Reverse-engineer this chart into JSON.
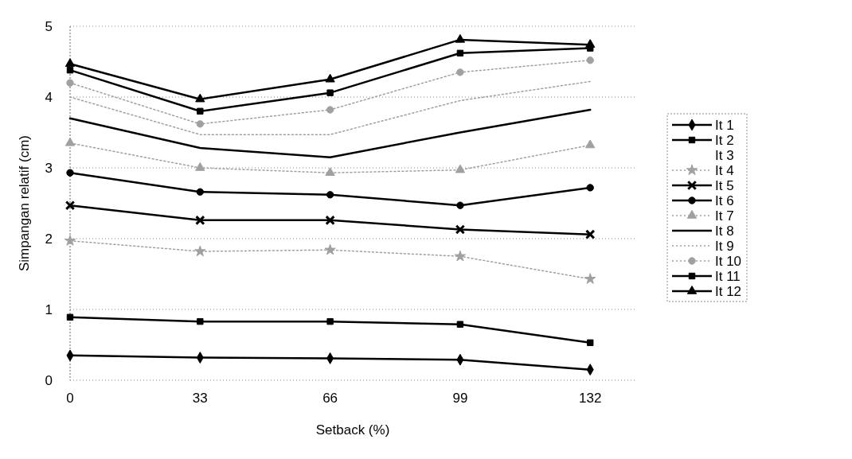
{
  "chart_data": {
    "type": "line",
    "xlabel": "Setback (%)",
    "ylabel": "Simpangan relatif (cm)",
    "categories": [
      "0",
      "33",
      "66",
      "99",
      "132"
    ],
    "ylim": [
      0,
      5
    ],
    "yticks": [
      0,
      1,
      2,
      3,
      4,
      5
    ],
    "grid": "y",
    "legend": "right",
    "series": [
      {
        "name": "It 1",
        "color": "#000000",
        "marker": "diamond",
        "line_style": "solid",
        "values": [
          0.35,
          0.32,
          0.31,
          0.29,
          0.15
        ]
      },
      {
        "name": "It 2",
        "color": "#000000",
        "marker": "square",
        "line_style": "solid",
        "values": [
          0.89,
          0.83,
          0.83,
          0.79,
          0.53
        ]
      },
      {
        "name": "It 3",
        "marker": "none",
        "line_style": "solid",
        "values": [
          null,
          null,
          null,
          null,
          null
        ]
      },
      {
        "name": "It 4",
        "color": "#a0a0a0",
        "marker": "star",
        "line_style": "dotted",
        "values": [
          1.97,
          1.82,
          1.84,
          1.75,
          1.43
        ]
      },
      {
        "name": "It 5",
        "color": "#000000",
        "marker": "cross",
        "line_style": "solid",
        "values": [
          2.47,
          2.26,
          2.26,
          2.13,
          2.06
        ]
      },
      {
        "name": "It 6",
        "color": "#000000",
        "marker": "circle",
        "line_style": "solid",
        "values": [
          2.93,
          2.66,
          2.62,
          2.47,
          2.72
        ]
      },
      {
        "name": "It 7",
        "color": "#a0a0a0",
        "marker": "triangle",
        "line_style": "dotted",
        "values": [
          3.35,
          3.0,
          2.93,
          2.97,
          3.32
        ]
      },
      {
        "name": "It 8",
        "color": "#000000",
        "marker": "none",
        "line_style": "solid",
        "values": [
          3.7,
          3.28,
          3.15,
          3.5,
          3.82
        ]
      },
      {
        "name": "It 9",
        "color": "#a0a0a0",
        "marker": "none",
        "line_style": "dotted",
        "values": [
          4.0,
          3.47,
          3.47,
          3.95,
          4.22
        ]
      },
      {
        "name": "It 10",
        "color": "#a0a0a0",
        "marker": "circle",
        "line_style": "dotted",
        "values": [
          4.2,
          3.62,
          3.82,
          4.35,
          4.52
        ]
      },
      {
        "name": "It 11",
        "color": "#000000",
        "marker": "square",
        "line_style": "solid",
        "values": [
          4.38,
          3.8,
          4.06,
          4.62,
          4.69
        ]
      },
      {
        "name": "It 12",
        "color": "#000000",
        "marker": "triangle",
        "line_style": "solid",
        "values": [
          4.47,
          3.97,
          4.25,
          4.81,
          4.74
        ]
      }
    ]
  }
}
